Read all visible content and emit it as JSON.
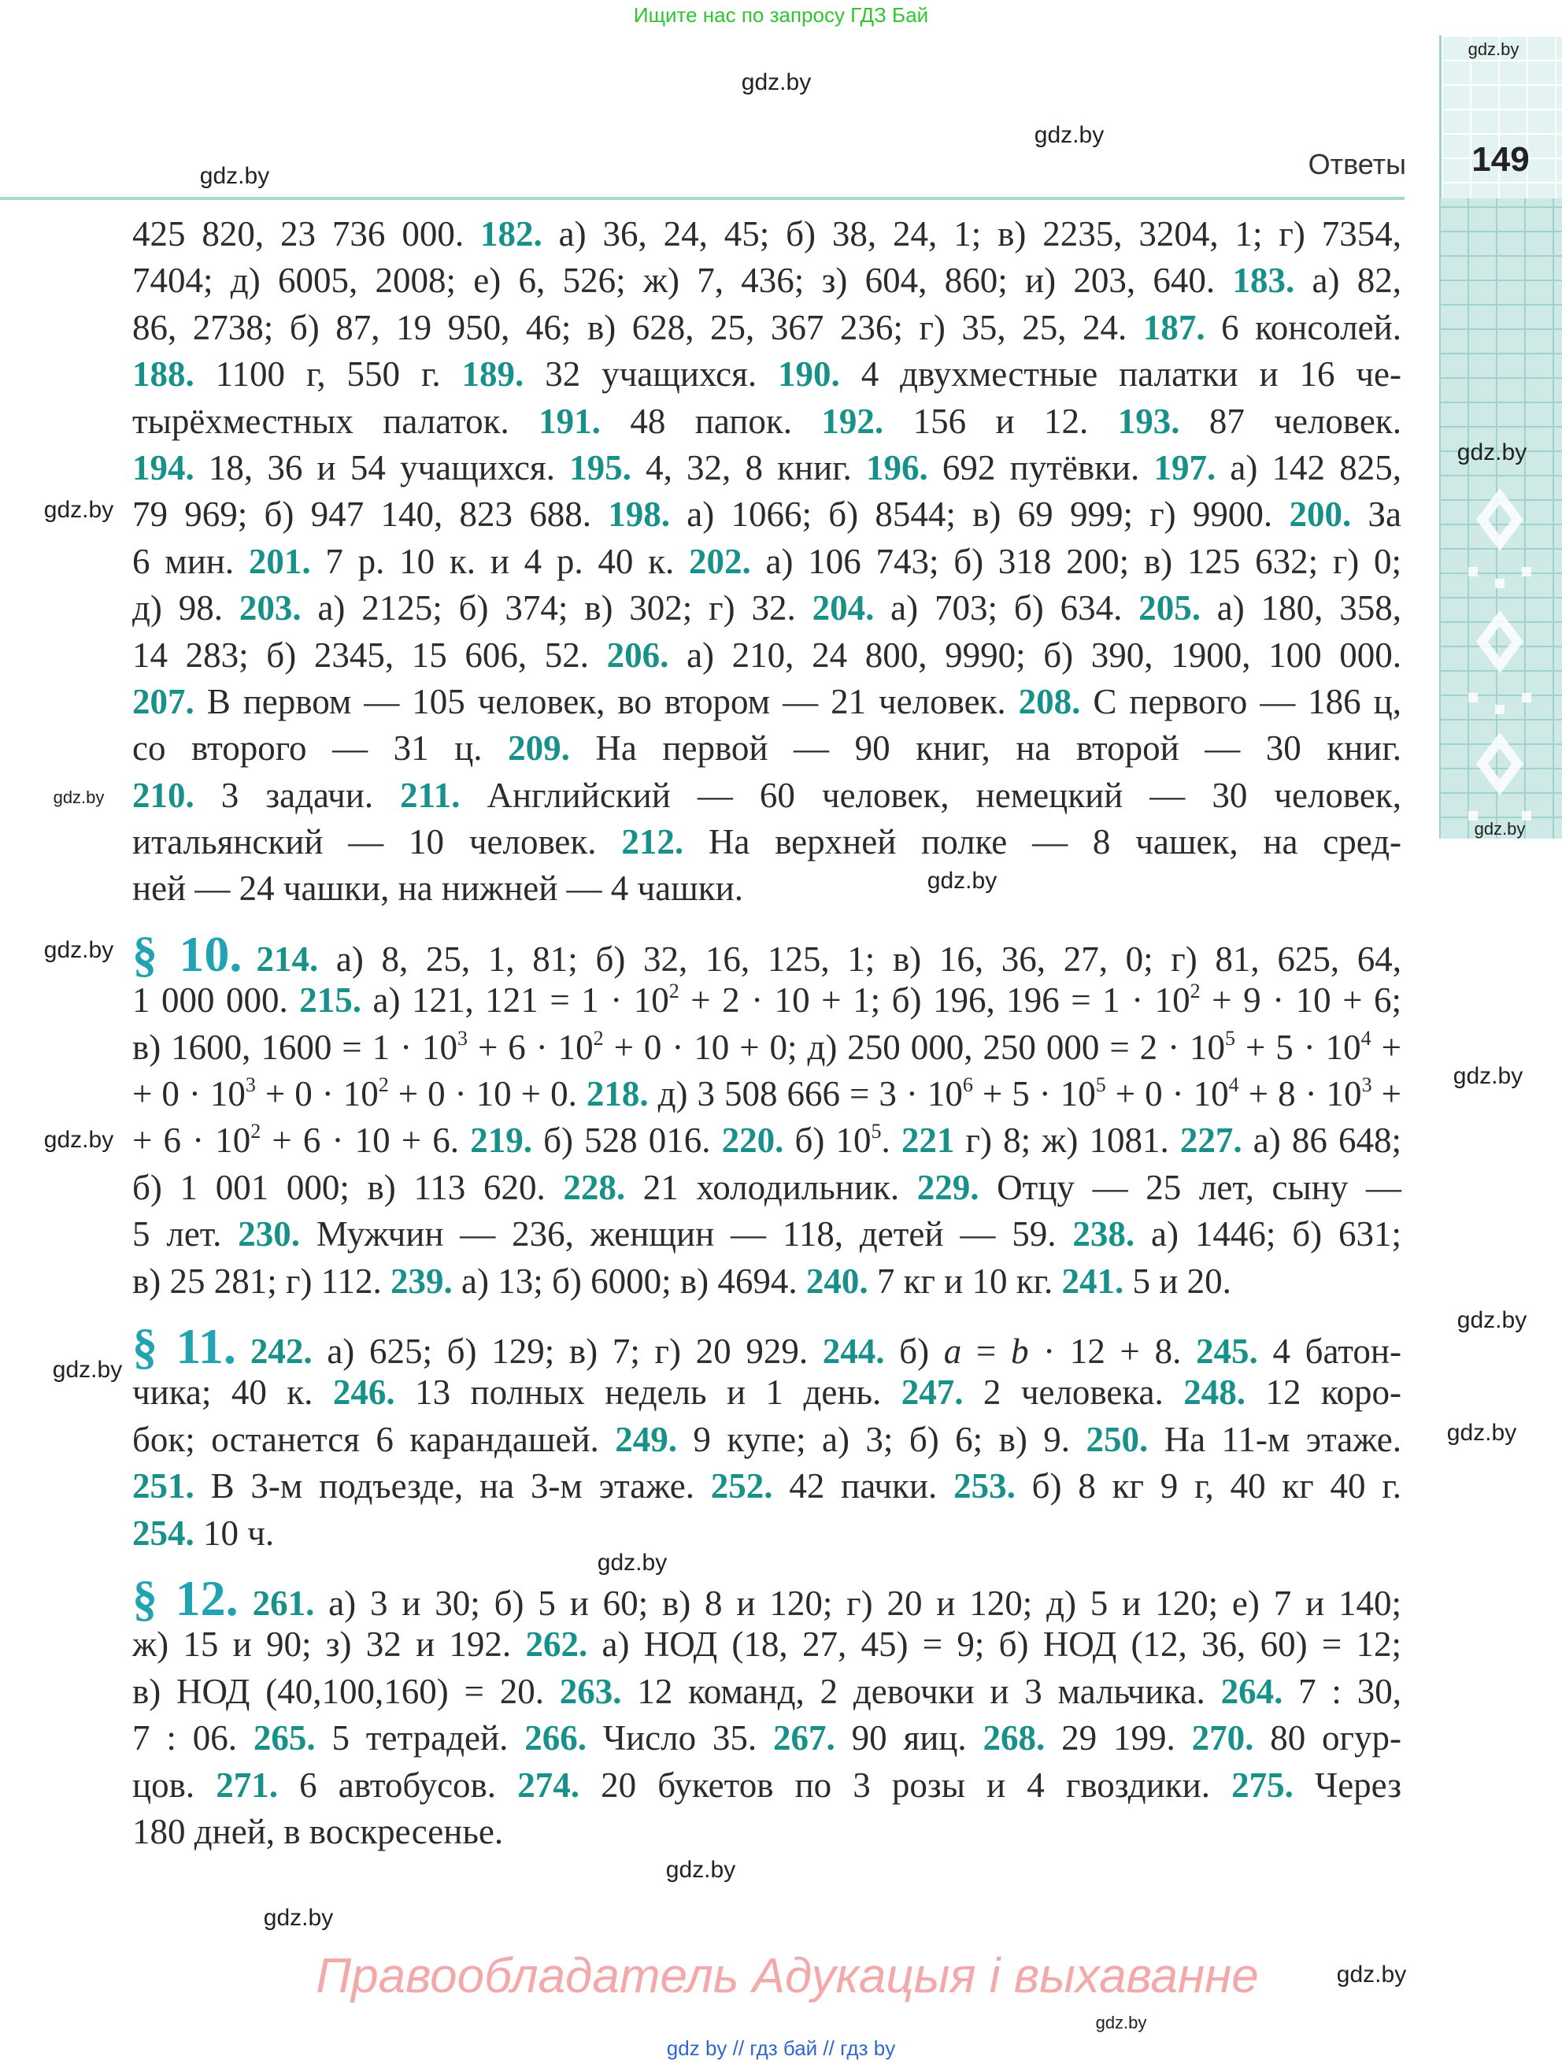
{
  "banner": "Ищите нас по запросу ГДЗ Бай",
  "header": {
    "section": "Ответы",
    "page_number": "149"
  },
  "colors": {
    "number": "#17918a",
    "section": "#22a3b3",
    "band": "#cfe9e6",
    "banner": "#2fc52f",
    "rights": "#f3a9a9"
  },
  "paragraphs": [
    [
      [
        {
          "t": "425 820, 23 736 000. "
        },
        {
          "n": "182."
        },
        {
          "t": " а) 36, 24, 45; б) 38, 24, 1; в) 2235, 3204, 1; г) 7354,"
        }
      ],
      [
        {
          "t": "7404; д) 6005, 2008; е) 6, 526; ж) 7, 436; з) 604, 860; и) 203, 640. "
        },
        {
          "n": "183."
        },
        {
          "t": " а) 82,"
        }
      ],
      [
        {
          "t": "86, 2738; б) 87, 19 950, 46; в) 628, 25, 367 236; г) 35, 25, 24. "
        },
        {
          "n": "187."
        },
        {
          "t": " 6 консолей."
        }
      ],
      [
        {
          "n": "188."
        },
        {
          "t": " 1100 г, 550 г. "
        },
        {
          "n": "189."
        },
        {
          "t": " 32 учащихся. "
        },
        {
          "n": "190."
        },
        {
          "t": " 4 двухместные палатки и 16 че-"
        }
      ],
      [
        {
          "t": "тырёхместных палаток. "
        },
        {
          "n": "191."
        },
        {
          "t": " 48 папок. "
        },
        {
          "n": "192."
        },
        {
          "t": " 156 и 12. "
        },
        {
          "n": "193."
        },
        {
          "t": " 87 человек."
        }
      ],
      [
        {
          "n": "194."
        },
        {
          "t": " 18, 36 и 54 учащихся. "
        },
        {
          "n": "195."
        },
        {
          "t": " 4, 32, 8 книг. "
        },
        {
          "n": "196."
        },
        {
          "t": " 692 путёвки. "
        },
        {
          "n": "197."
        },
        {
          "t": " а) 142 825,"
        }
      ],
      [
        {
          "t": "79 969; б) 947 140, 823 688. "
        },
        {
          "n": "198."
        },
        {
          "t": " а) 1066; б) 8544; в) 69 999; г) 9900. "
        },
        {
          "n": "200."
        },
        {
          "t": " За"
        }
      ],
      [
        {
          "t": "6 мин. "
        },
        {
          "n": "201."
        },
        {
          "t": " 7 р. 10 к. и 4 р. 40 к. "
        },
        {
          "n": "202."
        },
        {
          "t": " а) 106 743; б) 318 200; в) 125 632; г) 0;"
        }
      ],
      [
        {
          "t": "д) 98. "
        },
        {
          "n": "203."
        },
        {
          "t": " а) 2125; б) 374; в) 302; г) 32. "
        },
        {
          "n": "204."
        },
        {
          "t": " а) 703; б) 634. "
        },
        {
          "n": "205."
        },
        {
          "t": " а) 180, 358,"
        }
      ],
      [
        {
          "t": "14 283; б) 2345, 15 606, 52. "
        },
        {
          "n": "206."
        },
        {
          "t": " а) 210, 24 800, 9990; б) 390, 1900, 100 000."
        }
      ],
      [
        {
          "n": "207."
        },
        {
          "t": " В первом — 105 человек, во втором — 21 человек. "
        },
        {
          "n": "208."
        },
        {
          "t": " С первого — 186 ц,"
        }
      ],
      [
        {
          "t": "со второго — 31 ц. "
        },
        {
          "n": "209."
        },
        {
          "t": " На первой — 90 книг, на второй — 30 книг."
        }
      ],
      [
        {
          "n": "210."
        },
        {
          "t": " 3 задачи. "
        },
        {
          "n": "211."
        },
        {
          "t": " Английский — 60 человек, немецкий — 30 человек,"
        }
      ],
      [
        {
          "t": "итальянский — 10 человек. "
        },
        {
          "n": "212."
        },
        {
          "t": " На верхней полке — 8 чашек, на сред-"
        }
      ],
      [
        {
          "t": "ней — 24 чашки, на нижней — 4 чашки."
        }
      ]
    ],
    [
      [
        {
          "sec": "§ 10."
        },
        {
          "n": "214."
        },
        {
          "t": " а) 8, 25, 1, 81; б) 32, 16, 125, 1; в) 16, 36, 27, 0; г) 81, 625, 64,"
        }
      ],
      [
        {
          "t": "1 000 000. "
        },
        {
          "n": "215."
        },
        {
          "t": " а) 121, 121 = 1 · 10"
        },
        {
          "sup": "2"
        },
        {
          "t": " + 2 · 10 + 1; б) 196, 196 = 1 · 10"
        },
        {
          "sup": "2"
        },
        {
          "t": " + 9 · 10 + 6;"
        }
      ],
      [
        {
          "t": "в) 1600, 1600 = 1 · 10"
        },
        {
          "sup": "3"
        },
        {
          "t": " + 6 · 10"
        },
        {
          "sup": "2"
        },
        {
          "t": " + 0 · 10 + 0; д) 250 000, 250 000 = 2 · 10"
        },
        {
          "sup": "5"
        },
        {
          "t": " + 5 · 10"
        },
        {
          "sup": "4"
        },
        {
          "t": " +"
        }
      ],
      [
        {
          "t": "+ 0 · 10"
        },
        {
          "sup": "3"
        },
        {
          "t": " + 0 · 10"
        },
        {
          "sup": "2"
        },
        {
          "t": " + 0 · 10 + 0. "
        },
        {
          "n": "218."
        },
        {
          "t": " д) 3 508 666 = 3 · 10"
        },
        {
          "sup": "6"
        },
        {
          "t": " + 5 · 10"
        },
        {
          "sup": "5"
        },
        {
          "t": " + 0 · 10"
        },
        {
          "sup": "4"
        },
        {
          "t": " + 8 · 10"
        },
        {
          "sup": "3"
        },
        {
          "t": " +"
        }
      ],
      [
        {
          "t": "+ 6 · 10"
        },
        {
          "sup": "2"
        },
        {
          "t": " + 6 · 10 + 6. "
        },
        {
          "n": "219."
        },
        {
          "t": " б) 528 016. "
        },
        {
          "n": "220."
        },
        {
          "t": " б) 10"
        },
        {
          "sup": "5"
        },
        {
          "t": ". "
        },
        {
          "n": "221"
        },
        {
          "t": " г) 8; ж) 1081. "
        },
        {
          "n": "227."
        },
        {
          "t": " а) 86 648;"
        }
      ],
      [
        {
          "t": "б) 1 001 000; в) 113 620. "
        },
        {
          "n": "228."
        },
        {
          "t": " 21 холодильник. "
        },
        {
          "n": "229."
        },
        {
          "t": " Отцу — 25 лет, сыну —"
        }
      ],
      [
        {
          "t": "5 лет. "
        },
        {
          "n": "230."
        },
        {
          "t": " Мужчин — 236, женщин — 118, детей — 59. "
        },
        {
          "n": "238."
        },
        {
          "t": " а) 1446; б) 631;"
        }
      ],
      [
        {
          "t": "в) 25 281; г) 112. "
        },
        {
          "n": "239."
        },
        {
          "t": " а) 13; б) 6000; в) 4694. "
        },
        {
          "n": "240."
        },
        {
          "t": " 7 кг и 10 кг. "
        },
        {
          "n": "241."
        },
        {
          "t": " 5 и 20."
        }
      ]
    ],
    [
      [
        {
          "sec": "§ 11."
        },
        {
          "n": "242."
        },
        {
          "t": " а) 625; б) 129; в) 7; г) 20 929. "
        },
        {
          "n": "244."
        },
        {
          "t": " б) "
        },
        {
          "i": "a"
        },
        {
          "t": " = "
        },
        {
          "i": "b"
        },
        {
          "t": " · 12 + 8. "
        },
        {
          "n": "245."
        },
        {
          "t": " 4 батон-"
        }
      ],
      [
        {
          "t": "чика; 40 к. "
        },
        {
          "n": "246."
        },
        {
          "t": " 13 полных недель и 1 день. "
        },
        {
          "n": "247."
        },
        {
          "t": " 2 человека. "
        },
        {
          "n": "248."
        },
        {
          "t": " 12 коро-"
        }
      ],
      [
        {
          "t": "бок; останется 6 карандашей. "
        },
        {
          "n": "249."
        },
        {
          "t": " 9 купе; а) 3; б) 6; в) 9. "
        },
        {
          "n": "250."
        },
        {
          "t": " На 11-м этаже."
        }
      ],
      [
        {
          "n": "251."
        },
        {
          "t": " В 3-м подъезде, на 3-м этаже. "
        },
        {
          "n": "252."
        },
        {
          "t": " 42 пачки. "
        },
        {
          "n": "253."
        },
        {
          "t": " б) 8 кг 9 г, 40 кг 40 г."
        }
      ],
      [
        {
          "n": "254."
        },
        {
          "t": " 10 ч."
        }
      ]
    ],
    [
      [
        {
          "sec": "§ 12."
        },
        {
          "n": "261."
        },
        {
          "t": " а) 3 и 30; б) 5 и 60; в) 8 и 120; г) 20 и 120; д) 5 и 120; е) 7 и 140;"
        }
      ],
      [
        {
          "t": "ж) 15 и 90; з) 32 и 192. "
        },
        {
          "n": "262."
        },
        {
          "t": " а) НОД (18, 27, 45) = 9; б) НОД (12, 36, 60) = 12;"
        }
      ],
      [
        {
          "t": "в) НОД (40,100,160) = 20. "
        },
        {
          "n": "263."
        },
        {
          "t": " 12 команд, 2 девочки и 3 мальчика. "
        },
        {
          "n": "264."
        },
        {
          "t": " 7 : 30,"
        }
      ],
      [
        {
          "t": "7 : 06. "
        },
        {
          "n": "265."
        },
        {
          "t": " 5 тетрадей. "
        },
        {
          "n": "266."
        },
        {
          "t": " Число 35. "
        },
        {
          "n": "267."
        },
        {
          "t": " 90 яиц. "
        },
        {
          "n": "268."
        },
        {
          "t": " 29 199. "
        },
        {
          "n": "270."
        },
        {
          "t": " 80 огур-"
        }
      ],
      [
        {
          "t": "цов. "
        },
        {
          "n": "271."
        },
        {
          "t": " 6 автобусов. "
        },
        {
          "n": "274."
        },
        {
          "t": " 20 букетов по 3 розы и 4 гвоздики. "
        },
        {
          "n": "275."
        },
        {
          "t": " Через"
        }
      ],
      [
        {
          "t": "180 дней, в воскресенье."
        }
      ]
    ]
  ],
  "watermarks": [
    "gdz.by",
    "gdz.by",
    "gdz.by",
    "gdz.by",
    "gdz.by",
    "gdz.by",
    "gdz.by",
    "gdz.by",
    "gdz.by",
    "gdz.by",
    "gdz.by",
    "gdz.by",
    "gdz.by",
    "gdz.by",
    "gdz.by",
    "gdz.by",
    "gdz.by",
    "gdz.by",
    "gdz.by",
    "gdz.by"
  ],
  "rights": "Правообладатель Адукацыя і выхаванне",
  "footer": "gdz by  //  гдз бай  //  гдз by"
}
